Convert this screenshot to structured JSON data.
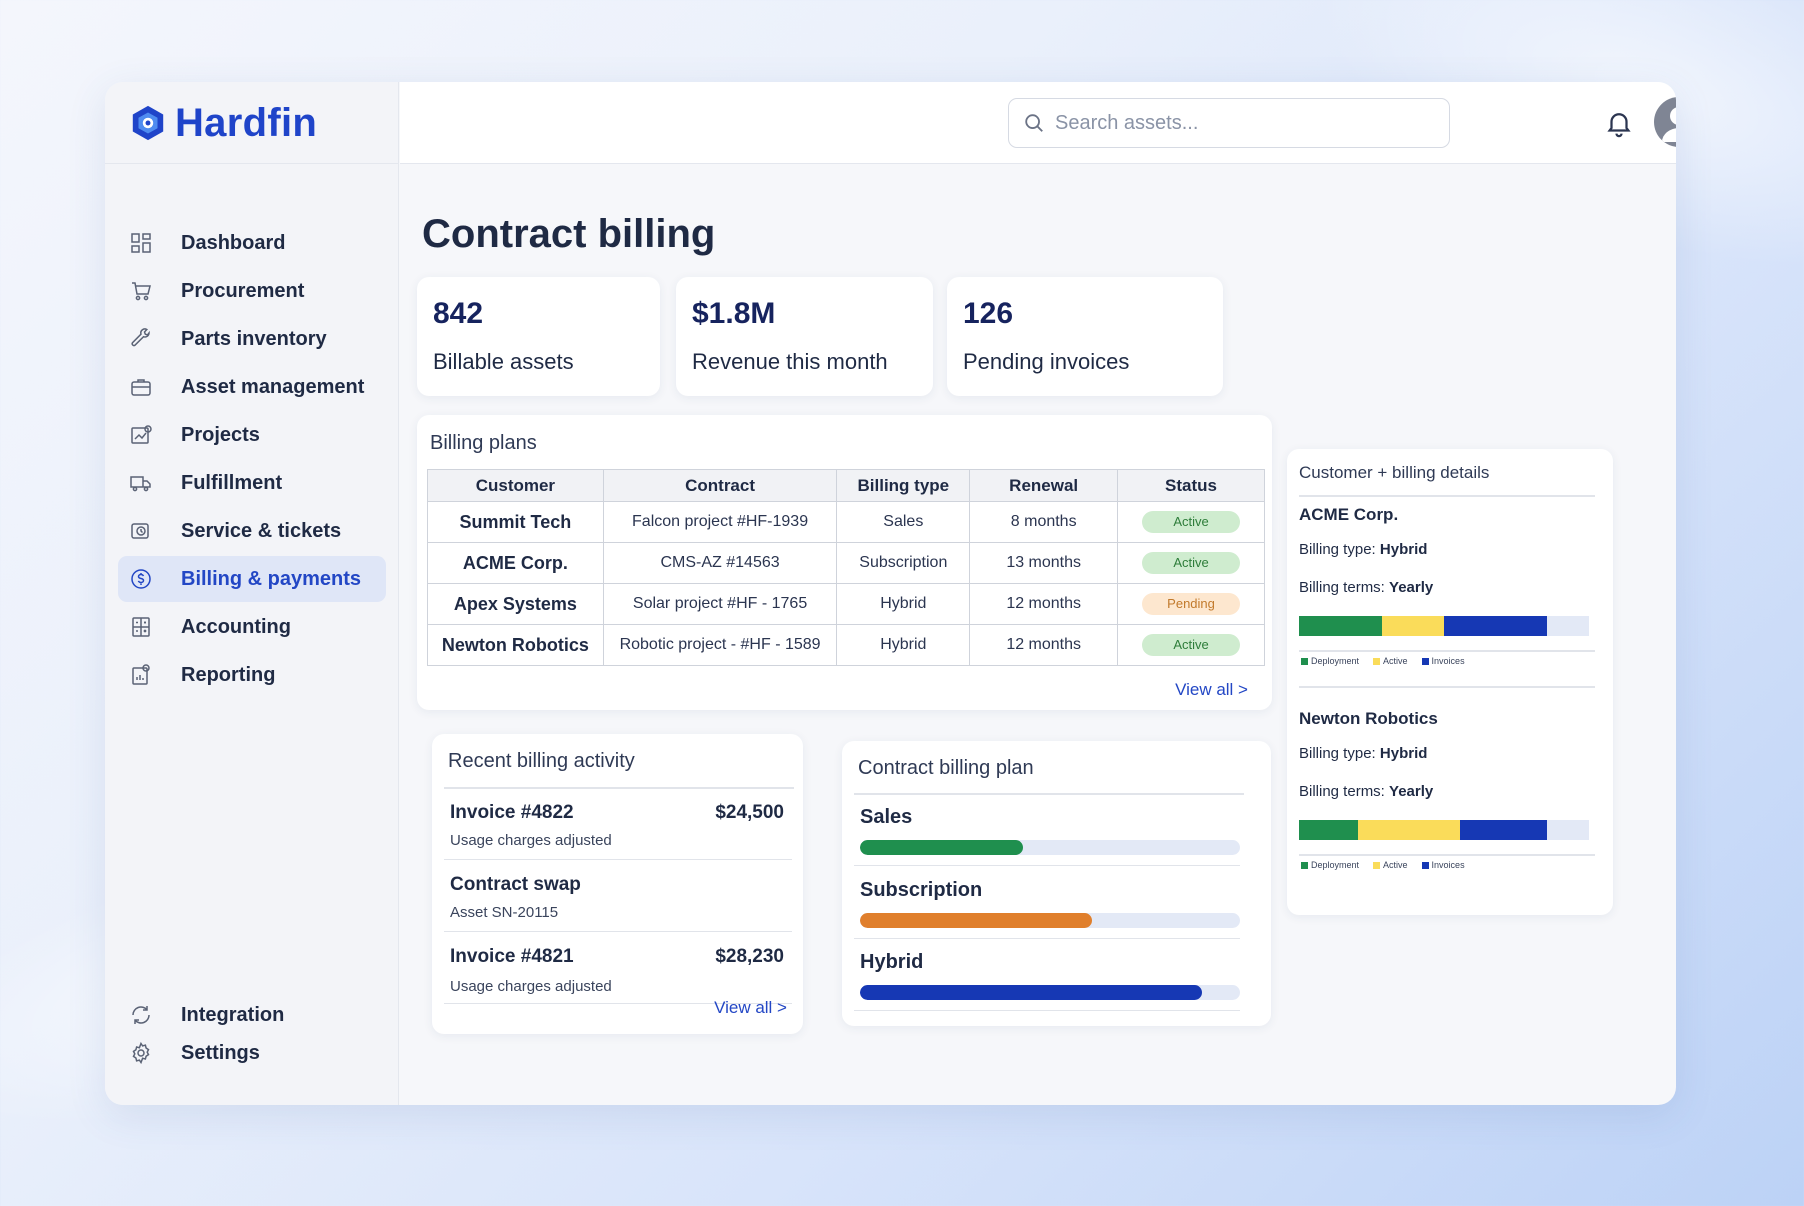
{
  "brand": {
    "name": "Hardfin"
  },
  "search": {
    "placeholder": "Search assets..."
  },
  "nav": {
    "items": [
      {
        "label": "Dashboard",
        "icon": "dashboard-icon"
      },
      {
        "label": "Procurement",
        "icon": "cart-icon"
      },
      {
        "label": "Parts inventory",
        "icon": "wrench-icon"
      },
      {
        "label": "Asset management",
        "icon": "briefcase-icon"
      },
      {
        "label": "Projects",
        "icon": "projects-icon"
      },
      {
        "label": "Fulfillment",
        "icon": "truck-icon"
      },
      {
        "label": "Service & tickets",
        "icon": "ticket-icon"
      },
      {
        "label": "Billing & payments",
        "icon": "dollar-icon",
        "active": true
      },
      {
        "label": "Accounting",
        "icon": "calculator-icon"
      },
      {
        "label": "Reporting",
        "icon": "report-icon"
      }
    ],
    "bottom": [
      {
        "label": "Integration",
        "icon": "sync-icon"
      },
      {
        "label": "Settings",
        "icon": "gear-icon"
      }
    ]
  },
  "page": {
    "title": "Contract billing"
  },
  "stats": [
    {
      "value": "842",
      "label": "Billable assets"
    },
    {
      "value": "$1.8M",
      "label": "Revenue this month"
    },
    {
      "value": "126",
      "label": "Pending invoices"
    }
  ],
  "billing_plans": {
    "title": "Billing plans",
    "columns": [
      "Customer",
      "Contract",
      "Billing type",
      "Renewal",
      "Status"
    ],
    "rows": [
      {
        "customer": "Summit Tech",
        "contract": "Falcon project #HF-1939",
        "type": "Sales",
        "renewal": "8 months",
        "status": "Active"
      },
      {
        "customer": "ACME Corp.",
        "contract": "CMS-AZ #14563",
        "type": "Subscription",
        "renewal": "13 months",
        "status": "Active"
      },
      {
        "customer": "Apex Systems",
        "contract": "Solar project #HF - 1765",
        "type": "Hybrid",
        "renewal": "12 months",
        "status": "Pending"
      },
      {
        "customer": "Newton Robotics",
        "contract": "Robotic project - #HF - 1589",
        "type": "Hybrid",
        "renewal": "12 months",
        "status": "Active"
      }
    ],
    "view_all": "View all >"
  },
  "activity": {
    "title": "Recent billing activity",
    "items": [
      {
        "title": "Invoice #4822",
        "sub": "Usage charges adjusted",
        "amount": "$24,500"
      },
      {
        "title": "Contract swap",
        "sub": "Asset SN-20115",
        "amount": ""
      },
      {
        "title": "Invoice #4821",
        "sub": "Usage charges adjusted",
        "amount": "$28,230"
      }
    ],
    "view_all": "View all >"
  },
  "contract_plan": {
    "title": "Contract billing plan",
    "bars": [
      {
        "label": "Sales",
        "fraction": 0.43,
        "color": "#1f8f4e"
      },
      {
        "label": "Subscription",
        "fraction": 0.61,
        "color": "#e07f2c"
      },
      {
        "label": "Hybrid",
        "fraction": 0.9,
        "color": "#1638b4"
      }
    ]
  },
  "customer_details": {
    "title": "Customer + billing details",
    "type_label": "Billing type:",
    "terms_label": "Billing terms:",
    "legend": [
      {
        "label": "Deployment",
        "color": "#1f8f4e"
      },
      {
        "label": "Active",
        "color": "#fadc5a"
      },
      {
        "label": "Invoices",
        "color": "#1638b4"
      }
    ],
    "customers": [
      {
        "name": "ACME Corp.",
        "billing_type": "Hybrid",
        "billing_terms": "Yearly",
        "shares": [
          0.285,
          0.215,
          0.355
        ]
      },
      {
        "name": "Newton Robotics",
        "billing_type": "Hybrid",
        "billing_terms": "Yearly",
        "shares": [
          0.205,
          0.35,
          0.3
        ]
      }
    ]
  }
}
